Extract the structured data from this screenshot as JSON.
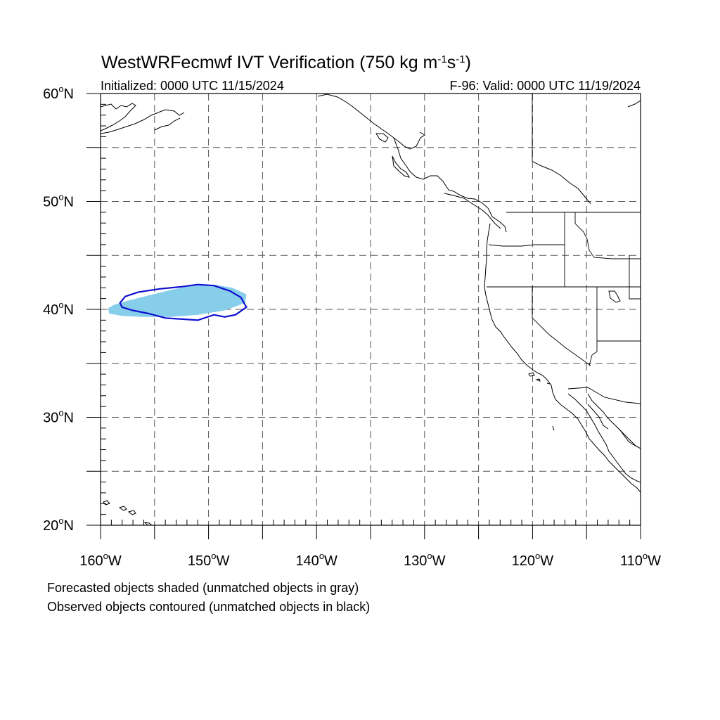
{
  "title": {
    "main": "WestWRFecmwf IVT Verification (750 kg m",
    "sup1": "-1",
    "mid": "s",
    "sup2": "-1",
    "end": ")"
  },
  "subtitle_left": "Initialized: 0000 UTC 11/15/2024",
  "subtitle_right": "F-96: Valid: 0000 UTC 11/19/2024",
  "lat_labels": [
    {
      "text": "60",
      "deg": "o",
      "hem": "N",
      "value": 60
    },
    {
      "text": "50",
      "deg": "o",
      "hem": "N",
      "value": 50
    },
    {
      "text": "40",
      "deg": "o",
      "hem": "N",
      "value": 40
    },
    {
      "text": "30",
      "deg": "o",
      "hem": "N",
      "value": 30
    },
    {
      "text": "20",
      "deg": "o",
      "hem": "N",
      "value": 20
    }
  ],
  "lon_labels": [
    {
      "text": "160",
      "deg": "o",
      "hem": "W",
      "value": -160
    },
    {
      "text": "150",
      "deg": "o",
      "hem": "W",
      "value": -150
    },
    {
      "text": "140",
      "deg": "o",
      "hem": "W",
      "value": -140
    },
    {
      "text": "130",
      "deg": "o",
      "hem": "W",
      "value": -130
    },
    {
      "text": "120",
      "deg": "o",
      "hem": "W",
      "value": -120
    },
    {
      "text": "110",
      "deg": "o",
      "hem": "W",
      "value": -110
    }
  ],
  "footnote_1": "Forecasted objects shaded (unmatched objects in gray)",
  "footnote_2": "Observed objects contoured (unmatched objects in black)",
  "map": {
    "lon_range": [
      -160,
      -110
    ],
    "lat_range": [
      20,
      60
    ],
    "grid_spacing_deg": 5,
    "forecast_fill_color": "#87ceeb",
    "observed_contour_color": "#1010d0",
    "coast_color": "#000000"
  },
  "forecast_object": [
    [
      -159.3,
      40.1
    ],
    [
      -158.8,
      40.4
    ],
    [
      -157.5,
      40.8
    ],
    [
      -155.5,
      41.3
    ],
    [
      -153.5,
      41.8
    ],
    [
      -151.5,
      42.2
    ],
    [
      -149.5,
      42.3
    ],
    [
      -147.8,
      42.0
    ],
    [
      -146.5,
      41.4
    ],
    [
      -146.6,
      40.6
    ],
    [
      -148.5,
      39.9
    ],
    [
      -151.0,
      39.5
    ],
    [
      -153.5,
      39.3
    ],
    [
      -156.0,
      39.3
    ],
    [
      -158.0,
      39.4
    ],
    [
      -159.2,
      39.6
    ]
  ],
  "observed_object": [
    [
      -158.2,
      40.6
    ],
    [
      -157.7,
      41.2
    ],
    [
      -156.5,
      41.6
    ],
    [
      -154.5,
      41.9
    ],
    [
      -152.5,
      42.1
    ],
    [
      -151.0,
      42.3
    ],
    [
      -149.5,
      42.2
    ],
    [
      -148.0,
      41.7
    ],
    [
      -147.0,
      41.1
    ],
    [
      -146.5,
      40.2
    ],
    [
      -147.5,
      39.5
    ],
    [
      -148.5,
      39.3
    ],
    [
      -149.5,
      39.5
    ],
    [
      -151.0,
      39.0
    ],
    [
      -152.5,
      39.1
    ],
    [
      -154.0,
      39.2
    ],
    [
      -155.5,
      39.6
    ],
    [
      -157.0,
      39.9
    ],
    [
      -158.0,
      40.2
    ]
  ]
}
